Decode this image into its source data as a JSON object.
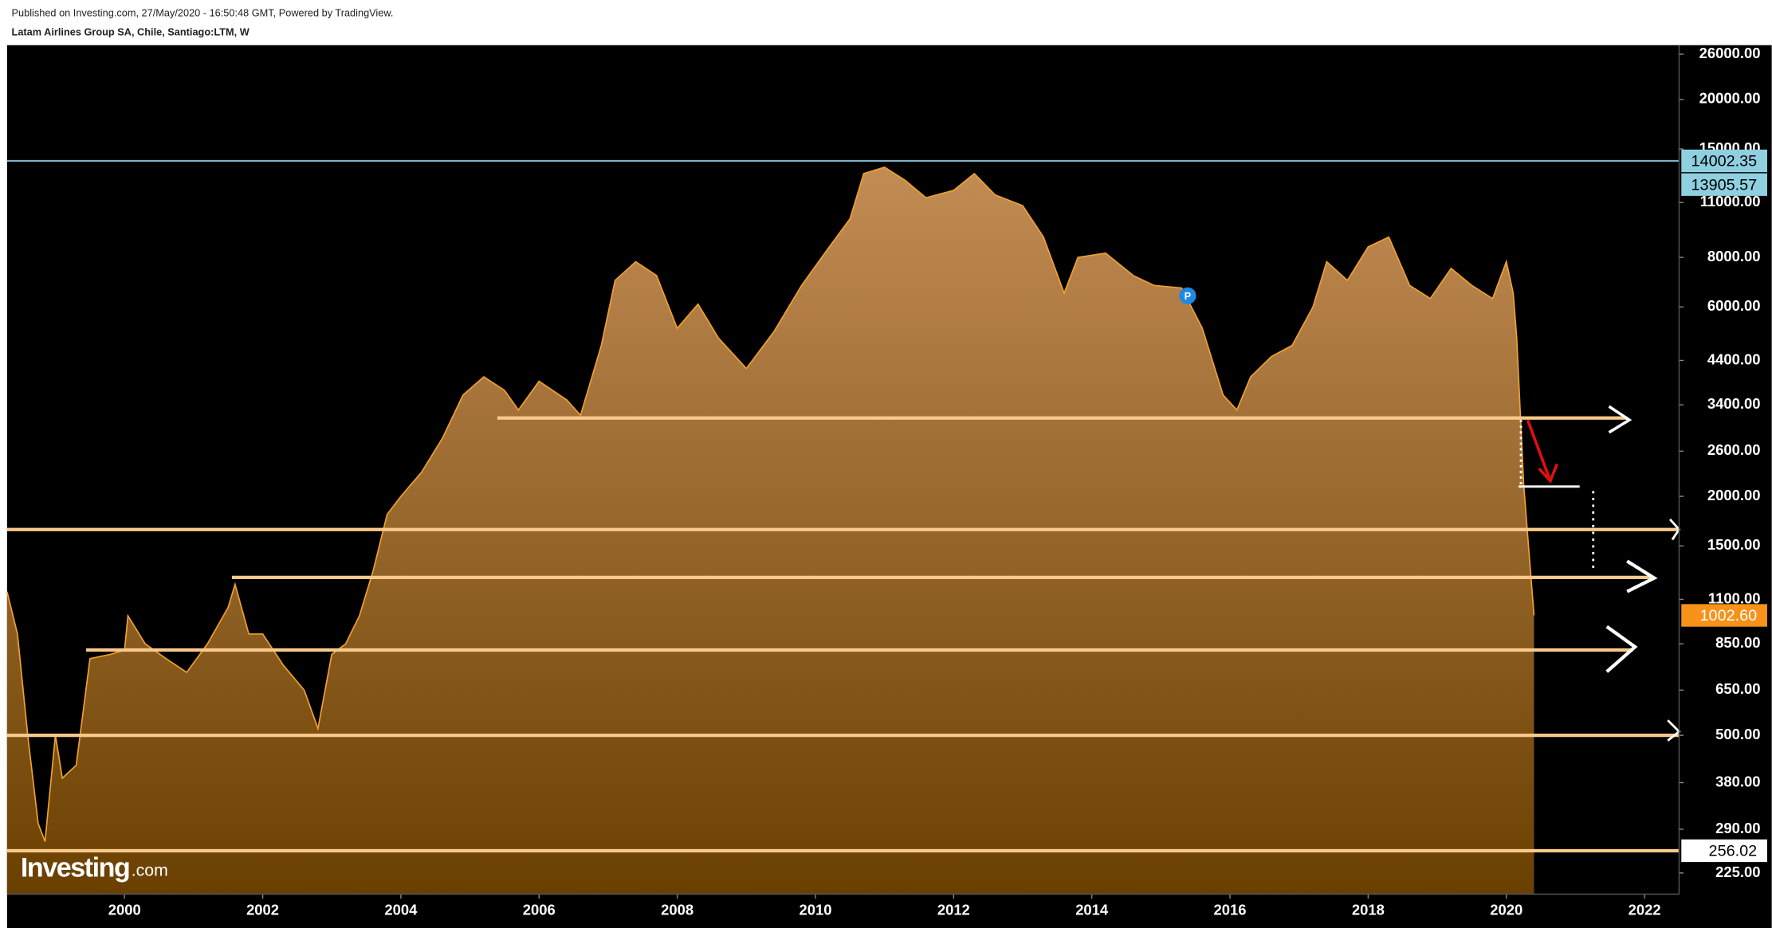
{
  "chart_data": {
    "type": "area",
    "header": "Published on Investing.com, 27/May/2020 - 16:50:48 GMT, Powered by TradingView.",
    "title": "Latam Airlines Group SA, Chile, Santiago:LTM, W",
    "watermark": "Investing",
    "watermark_suffix": ".com",
    "marker_label": "P",
    "log_scale": true,
    "color": "#f0a030",
    "x": [
      1998.3,
      1998.45,
      1998.6,
      1998.75,
      1998.85,
      1999.0,
      1999.1,
      1999.3,
      1999.5,
      1999.8,
      2000.0,
      2000.05,
      2000.3,
      2000.6,
      2000.9,
      2001.2,
      2001.5,
      2001.6,
      2001.8,
      2002.0,
      2002.3,
      2002.6,
      2002.8,
      2003.0,
      2003.2,
      2003.4,
      2003.6,
      2003.8,
      2004.0,
      2004.3,
      2004.6,
      2004.9,
      2005.2,
      2005.5,
      2005.7,
      2006.0,
      2006.4,
      2006.6,
      2006.9,
      2007.1,
      2007.4,
      2007.7,
      2008.0,
      2008.3,
      2008.6,
      2009.0,
      2009.4,
      2009.8,
      2010.2,
      2010.5,
      2010.7,
      2011.0,
      2011.3,
      2011.6,
      2012.0,
      2012.3,
      2012.6,
      2013.0,
      2013.3,
      2013.6,
      2013.8,
      2014.2,
      2014.6,
      2014.9,
      2015.3,
      2015.6,
      2015.9,
      2016.1,
      2016.3,
      2016.6,
      2016.9,
      2017.2,
      2017.4,
      2017.7,
      2018.0,
      2018.3,
      2018.6,
      2018.9,
      2019.2,
      2019.5,
      2019.8,
      2020.0,
      2020.1,
      2020.15,
      2020.25,
      2020.32,
      2020.4
    ],
    "values": [
      1150,
      900,
      500,
      300,
      270,
      500,
      390,
      420,
      780,
      800,
      820,
      1000,
      850,
      780,
      720,
      850,
      1050,
      1200,
      900,
      900,
      750,
      650,
      520,
      800,
      850,
      1000,
      1300,
      1800,
      2000,
      2300,
      2800,
      3600,
      4000,
      3700,
      3300,
      3900,
      3500,
      3200,
      4800,
      7000,
      7800,
      7200,
      5300,
      6100,
      5000,
      4200,
      5200,
      6800,
      8500,
      10000,
      13000,
      13500,
      12500,
      11300,
      11800,
      13000,
      11500,
      10800,
      9000,
      6500,
      8000,
      8200,
      7200,
      6800,
      6700,
      5300,
      3600,
      3300,
      4000,
      4500,
      4800,
      6000,
      7800,
      7000,
      8500,
      9000,
      6800,
      6300,
      7500,
      6800,
      6300,
      7800,
      6500,
      5000,
      2150,
      1500,
      1002.6
    ],
    "xlim": [
      1998.3,
      2022.5
    ],
    "ylim": [
      199,
      27400
    ],
    "xticks": [
      2000,
      2002,
      2004,
      2006,
      2008,
      2010,
      2012,
      2014,
      2016,
      2018,
      2020,
      2022
    ],
    "yticks": [
      {
        "value": 225,
        "label": "225.00"
      },
      {
        "value": 290,
        "label": "290.00"
      },
      {
        "value": 380,
        "label": "380.00"
      },
      {
        "value": 500,
        "label": "500.00"
      },
      {
        "value": 650,
        "label": "650.00"
      },
      {
        "value": 850,
        "label": "850.00"
      },
      {
        "value": 1100,
        "label": "1100.00"
      },
      {
        "value": 1500,
        "label": "1500.00"
      },
      {
        "value": 2000,
        "label": "2000.00"
      },
      {
        "value": 2600,
        "label": "2600.00"
      },
      {
        "value": 3400,
        "label": "3400.00"
      },
      {
        "value": 4400,
        "label": "4400.00"
      },
      {
        "value": 6000,
        "label": "6000.00"
      },
      {
        "value": 8000,
        "label": "8000.00"
      },
      {
        "value": 11000,
        "label": "11000.00"
      },
      {
        "value": 15000,
        "label": "15000.00"
      },
      {
        "value": 20000,
        "label": "20000.00"
      },
      {
        "value": 26000,
        "label": "26000.00"
      }
    ],
    "levels": [
      {
        "value": 14002.35,
        "color": "#7fb2c6"
      },
      {
        "value": 3150,
        "color": "#f8c98a"
      },
      {
        "value": 1650,
        "color": "#f8c98a"
      },
      {
        "value": 1250,
        "color": "#f8c98a"
      },
      {
        "value": 820,
        "color": "#f8c98a"
      },
      {
        "value": 500,
        "color": "#f8c98a"
      },
      {
        "value": 256.02,
        "color": "#f8c98a"
      }
    ],
    "price_labels": [
      {
        "value": 14002.35,
        "color": "#8fd0e0",
        "text_color": "#000"
      },
      {
        "value": 13905.57,
        "color": "#8fd0e0",
        "text_color": "#000"
      },
      {
        "value": 1002.6,
        "label": "1002.60",
        "color": "#f7931a",
        "text_color": "#fff"
      },
      {
        "value": 256.02,
        "color": "#ffffff",
        "text_color": "#000"
      }
    ]
  }
}
